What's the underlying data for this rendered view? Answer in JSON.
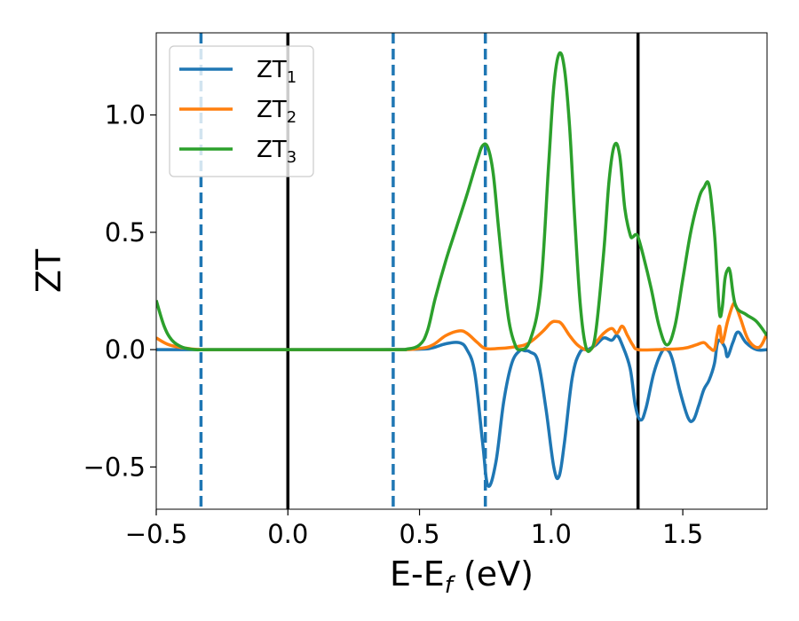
{
  "chart_data": {
    "type": "line",
    "xlabel": "E-E",
    "xlabel_subscript": "f",
    "xlabel_unit": " (eV)",
    "ylabel": "ZT",
    "xlim": [
      -0.5,
      1.82
    ],
    "ylim": [
      -0.68,
      1.35
    ],
    "xticks": [
      -0.5,
      0.0,
      0.5,
      1.0,
      1.5
    ],
    "xtick_labels": [
      "−0.5",
      "0.0",
      "0.5",
      "1.0",
      "1.5"
    ],
    "yticks": [
      -0.5,
      0.0,
      0.5,
      1.0
    ],
    "ytick_labels": [
      "−0.5",
      "0.0",
      "0.5",
      "1.0"
    ],
    "grid": false,
    "legend_position": "top-left",
    "vlines_solid": [
      0.0,
      1.33
    ],
    "vlines_dashed": [
      -0.33,
      0.4,
      0.75
    ],
    "colors": {
      "solid_vline": "#000000",
      "dashed_vline": "#1f77b4"
    },
    "series": [
      {
        "name": "ZT",
        "subscript": "1",
        "color": "#1f77b4",
        "x": [
          -0.5,
          -0.3,
          0.0,
          0.3,
          0.5,
          0.55,
          0.6,
          0.65,
          0.68,
          0.71,
          0.74,
          0.76,
          0.79,
          0.82,
          0.85,
          0.88,
          0.9,
          0.92,
          0.95,
          0.98,
          1.01,
          1.03,
          1.05,
          1.08,
          1.11,
          1.14,
          1.17,
          1.2,
          1.23,
          1.25,
          1.27,
          1.3,
          1.32,
          1.34,
          1.36,
          1.39,
          1.42,
          1.44,
          1.46,
          1.49,
          1.52,
          1.54,
          1.56,
          1.58,
          1.6,
          1.62,
          1.63,
          1.64,
          1.66,
          1.67,
          1.69,
          1.71,
          1.74,
          1.78,
          1.82
        ],
        "y": [
          0.0,
          0.0,
          0.0,
          0.0,
          0.002,
          0.008,
          0.025,
          0.03,
          0.0,
          -0.1,
          -0.4,
          -0.58,
          -0.48,
          -0.22,
          -0.06,
          -0.005,
          -0.005,
          -0.01,
          -0.05,
          -0.25,
          -0.5,
          -0.54,
          -0.4,
          -0.12,
          -0.01,
          0.0,
          0.02,
          0.05,
          0.04,
          0.06,
          0.02,
          -0.08,
          -0.24,
          -0.3,
          -0.25,
          -0.1,
          -0.01,
          0.0,
          -0.04,
          -0.18,
          -0.29,
          -0.3,
          -0.24,
          -0.17,
          -0.13,
          -0.06,
          0.02,
          0.04,
          0.01,
          -0.03,
          0.03,
          0.075,
          0.03,
          0.0,
          0.0
        ]
      },
      {
        "name": "ZT",
        "subscript": "2",
        "color": "#ff7f0e",
        "x": [
          -0.5,
          -0.45,
          -0.38,
          -0.3,
          0.0,
          0.4,
          0.5,
          0.55,
          0.6,
          0.65,
          0.68,
          0.72,
          0.75,
          0.8,
          0.85,
          0.9,
          0.93,
          0.97,
          1.0,
          1.02,
          1.04,
          1.07,
          1.1,
          1.13,
          1.15,
          1.17,
          1.2,
          1.23,
          1.25,
          1.27,
          1.29,
          1.31,
          1.33,
          1.4,
          1.5,
          1.55,
          1.58,
          1.6,
          1.62,
          1.63,
          1.64,
          1.65,
          1.67,
          1.69,
          1.7,
          1.72,
          1.75,
          1.79,
          1.82
        ],
        "y": [
          0.05,
          0.02,
          0.005,
          0.0,
          0.0,
          0.0,
          0.005,
          0.02,
          0.06,
          0.08,
          0.07,
          0.03,
          0.005,
          0.005,
          0.01,
          0.02,
          0.04,
          0.08,
          0.115,
          0.12,
          0.11,
          0.06,
          0.02,
          0.0,
          0.0,
          0.03,
          0.07,
          0.09,
          0.07,
          0.1,
          0.06,
          0.02,
          0.0,
          0.0,
          0.005,
          0.02,
          0.03,
          0.01,
          0.0,
          0.06,
          0.1,
          0.03,
          0.12,
          0.19,
          0.19,
          0.13,
          0.04,
          0.01,
          0.07
        ]
      },
      {
        "name": "ZT",
        "subscript": "3",
        "color": "#2ca02c",
        "x": [
          -0.5,
          -0.47,
          -0.44,
          -0.4,
          -0.35,
          -0.3,
          0.0,
          0.4,
          0.45,
          0.5,
          0.53,
          0.56,
          0.6,
          0.64,
          0.68,
          0.72,
          0.74,
          0.76,
          0.78,
          0.8,
          0.82,
          0.84,
          0.86,
          0.88,
          0.92,
          0.96,
          0.99,
          1.01,
          1.03,
          1.05,
          1.07,
          1.09,
          1.11,
          1.13,
          1.15,
          1.17,
          1.2,
          1.22,
          1.24,
          1.26,
          1.28,
          1.3,
          1.31,
          1.32,
          1.33,
          1.35,
          1.38,
          1.41,
          1.44,
          1.47,
          1.5,
          1.53,
          1.56,
          1.58,
          1.6,
          1.62,
          1.63,
          1.64,
          1.65,
          1.66,
          1.67,
          1.68,
          1.7,
          1.74,
          1.78,
          1.82
        ],
        "y": [
          0.21,
          0.1,
          0.04,
          0.01,
          0.0,
          0.0,
          0.0,
          0.0,
          0.002,
          0.02,
          0.08,
          0.22,
          0.38,
          0.52,
          0.66,
          0.81,
          0.87,
          0.86,
          0.75,
          0.52,
          0.3,
          0.12,
          0.03,
          0.0,
          0.04,
          0.26,
          0.78,
          1.12,
          1.26,
          1.2,
          0.95,
          0.55,
          0.2,
          0.02,
          0.0,
          0.08,
          0.42,
          0.72,
          0.87,
          0.83,
          0.6,
          0.49,
          0.48,
          0.49,
          0.48,
          0.4,
          0.26,
          0.1,
          0.02,
          0.1,
          0.3,
          0.5,
          0.64,
          0.69,
          0.7,
          0.5,
          0.32,
          0.15,
          0.18,
          0.3,
          0.34,
          0.33,
          0.19,
          0.15,
          0.12,
          0.06
        ]
      }
    ]
  }
}
